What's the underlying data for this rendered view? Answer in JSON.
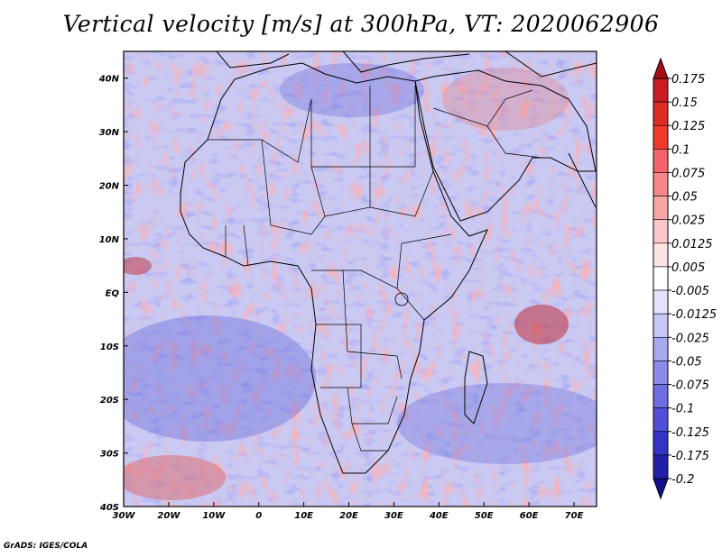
{
  "title": "Vertical velocity [m/s] at 300hPa, VT: 2020062906",
  "credit": "GrADS: IGES/COLA",
  "map": {
    "lon_range": [
      -30,
      75
    ],
    "lat_range": [
      -40,
      45
    ],
    "lat_ticks": [
      {
        "value": 40,
        "label": "40N"
      },
      {
        "value": 30,
        "label": "30N"
      },
      {
        "value": 20,
        "label": "20N"
      },
      {
        "value": 10,
        "label": "10N"
      },
      {
        "value": 0,
        "label": "EQ"
      },
      {
        "value": -10,
        "label": "10S"
      },
      {
        "value": -20,
        "label": "20S"
      },
      {
        "value": -30,
        "label": "30S"
      },
      {
        "value": -40,
        "label": "40S"
      }
    ],
    "lon_ticks": [
      {
        "value": -30,
        "label": "30W"
      },
      {
        "value": -20,
        "label": "20W"
      },
      {
        "value": -10,
        "label": "10W"
      },
      {
        "value": 0,
        "label": "0"
      },
      {
        "value": 10,
        "label": "10E"
      },
      {
        "value": 20,
        "label": "20E"
      },
      {
        "value": 30,
        "label": "30E"
      },
      {
        "value": 40,
        "label": "40E"
      },
      {
        "value": 50,
        "label": "50E"
      },
      {
        "value": 60,
        "label": "60E"
      },
      {
        "value": 70,
        "label": "70E"
      }
    ]
  },
  "colorbar": {
    "labels": [
      "0.175",
      "0.15",
      "0.125",
      "0.1",
      "0.075",
      "0.05",
      "0.025",
      "0.0125",
      "0.005",
      "-0.005",
      "-0.0125",
      "-0.025",
      "-0.05",
      "-0.075",
      "-0.1",
      "-0.125",
      "-0.175",
      "-0.2"
    ],
    "colors": [
      "#a50f15",
      "#c81d25",
      "#de2d26",
      "#ef3b2c",
      "#f4636a",
      "#f6888b",
      "#f8a5a7",
      "#fbc7c8",
      "#fde4e4",
      "#ffffff",
      "#e3e3fb",
      "#c7c7f5",
      "#a9a9ef",
      "#8c8ce8",
      "#6e6ee0",
      "#5050d6",
      "#3333c8",
      "#1f1fa8",
      "#10108a"
    ]
  }
}
